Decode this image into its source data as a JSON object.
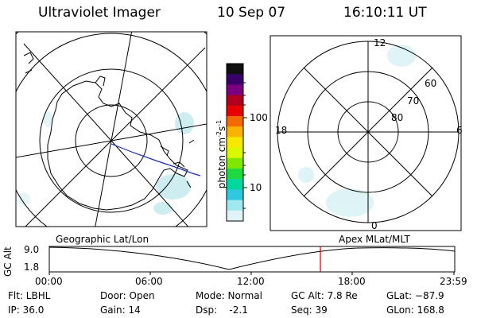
{
  "header": {
    "title": "Ultraviolet Imager",
    "date": "10 Sep 07",
    "time": "16:10:11 UT"
  },
  "colorbar": {
    "unit_text": "photon cm",
    "unit_exp1": "-2",
    "unit_s": "s",
    "unit_exp2": "-1",
    "tick_high": "100",
    "tick_low": "10",
    "colors": [
      "#101010",
      "#3a006a",
      "#7a0080",
      "#b00020",
      "#e80000",
      "#f46a00",
      "#f8b400",
      "#f8e800",
      "#d8f800",
      "#80e800",
      "#20d840",
      "#00d8a0",
      "#30c8e0",
      "#a0e8f0",
      "#e0f4f8"
    ]
  },
  "left_map": {
    "label": "Geographic Lat/Lon"
  },
  "right_map": {
    "label": "Apex MLat/MLT",
    "mlt_top": "12",
    "mlt_left": "18",
    "mlt_right": "6",
    "mlt_bottom": "0",
    "lat_60": "60",
    "lat_70": "70",
    "lat_80": "80"
  },
  "alt_plot": {
    "ylabel": "GC Alt",
    "y_high": "9.0",
    "y_low": "1.8",
    "x_ticks": [
      "00:00",
      "06:00",
      "12:00",
      "18:00",
      "23:59"
    ],
    "marker_color": "#cc0000"
  },
  "info": {
    "flt": "Flt: LBHL",
    "ip": "IP: 36.0",
    "door": "Door: Open",
    "gain": "Gain: 14",
    "mode": "Mode: Normal",
    "dsp": "Dsp:    -2.1",
    "gcalt": "GC Alt: 7.8 Re",
    "seq": "Seq: 39",
    "glat": "GLat: −87.9",
    "glon": "GLon: 168.8"
  }
}
